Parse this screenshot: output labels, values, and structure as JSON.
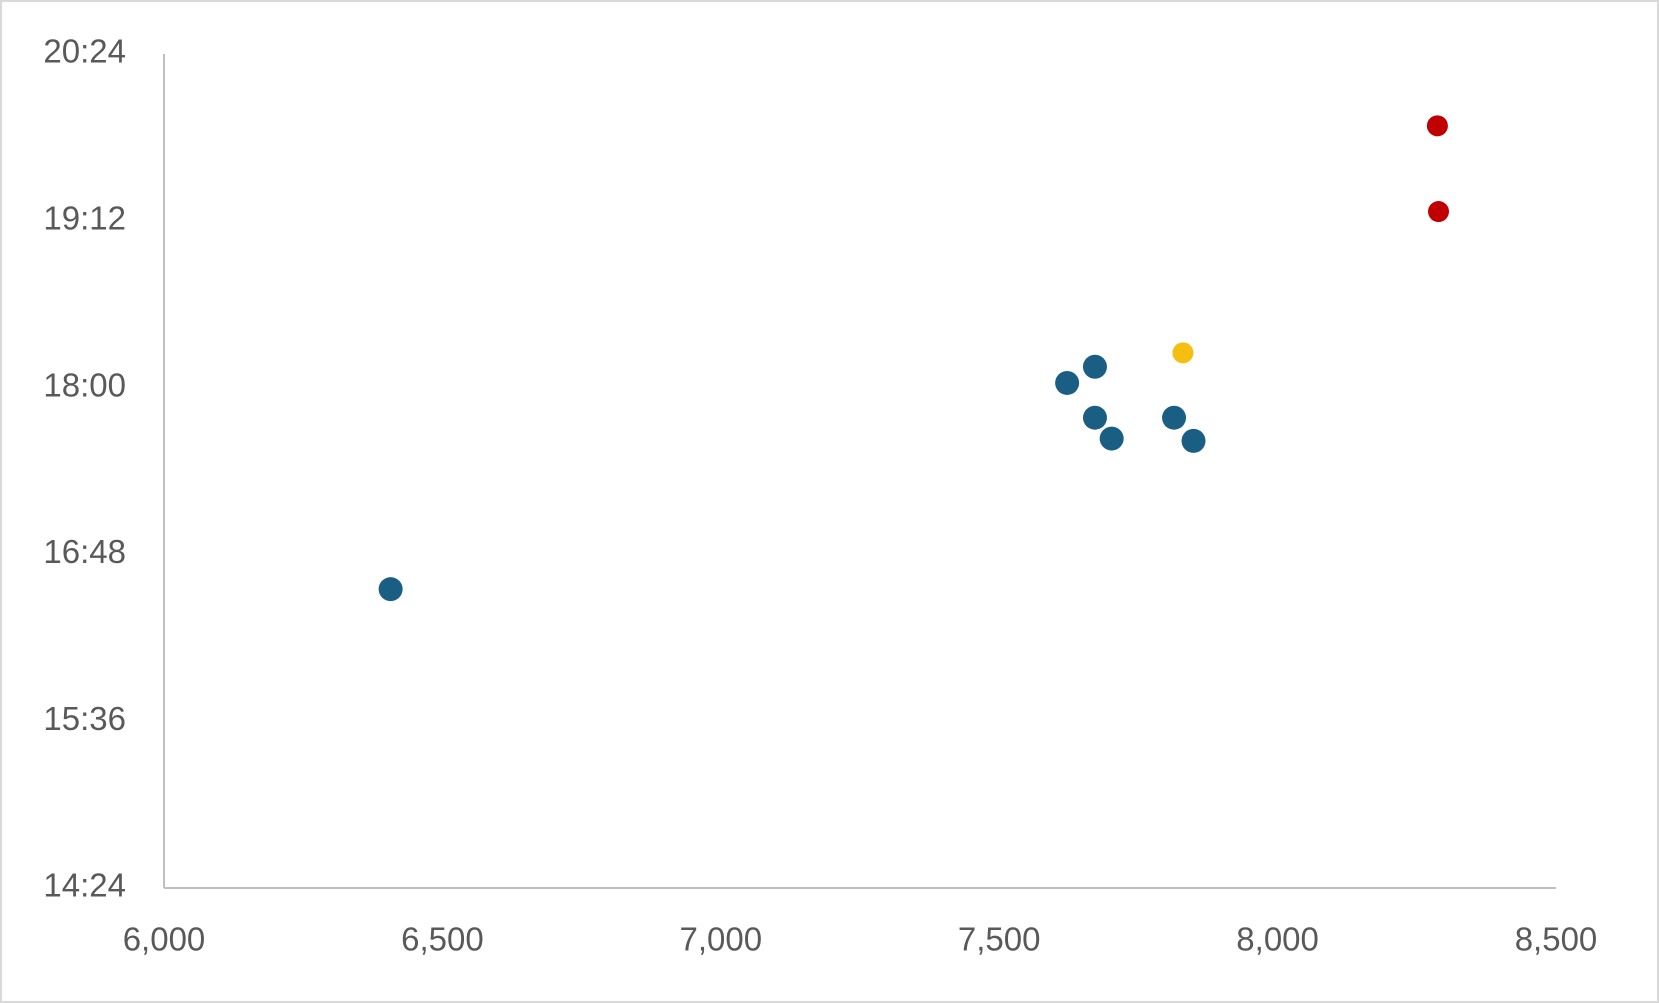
{
  "chart_data": {
    "type": "scatter",
    "series": [
      {
        "color": "#1b5e83",
        "x": [
          6407,
          7622,
          7672,
          7672,
          7702,
          7814,
          7849
        ],
        "y": [
          993,
          1082,
          1089,
          1067,
          1058,
          1067,
          1057
        ]
      },
      {
        "color": "#f5bf0f",
        "x": [
          7830
        ],
        "y": [
          1095
        ]
      },
      {
        "color": "#c00000",
        "x": [
          8287,
          8289
        ],
        "y": [
          1193,
          1156
        ]
      }
    ],
    "xlim": [
      6000,
      8500
    ],
    "xticks": [
      {
        "value": 6000,
        "label": "6,000"
      },
      {
        "value": 6500,
        "label": "6,500"
      },
      {
        "value": 7000,
        "label": "7,000"
      },
      {
        "value": 7500,
        "label": "7,500"
      },
      {
        "value": 8000,
        "label": "8,000"
      },
      {
        "value": 8500,
        "label": "8,500"
      }
    ],
    "ylim": [
      864,
      1224
    ],
    "yticks": [
      {
        "value": 864,
        "label": "14:24"
      },
      {
        "value": 936,
        "label": "15:36"
      },
      {
        "value": 1008,
        "label": "16:48"
      },
      {
        "value": 1080,
        "label": "18:00"
      },
      {
        "value": 1152,
        "label": "19:12"
      },
      {
        "value": 1224,
        "label": "20:24"
      }
    ],
    "grid": false
  }
}
